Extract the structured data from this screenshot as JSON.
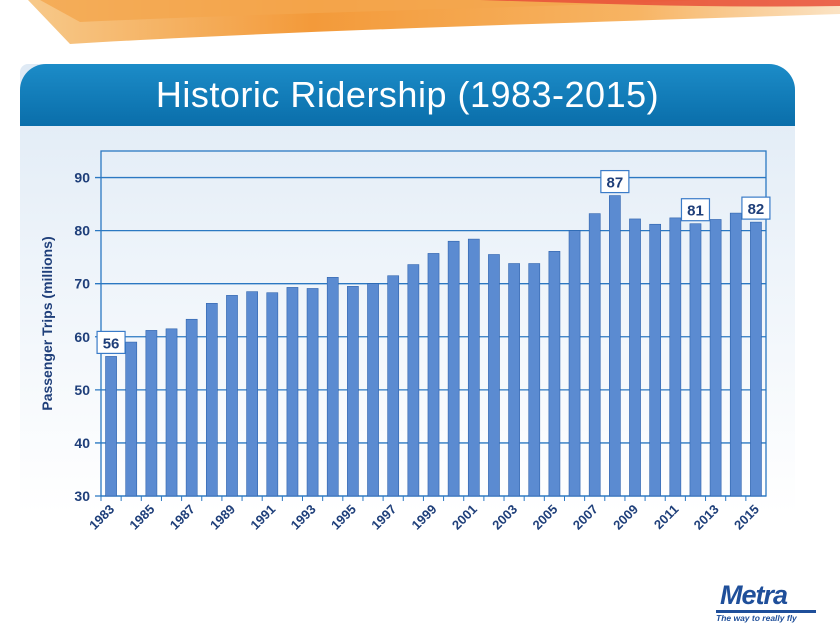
{
  "slide": {
    "title": "Historic Ridership (1983-2015)"
  },
  "logo": {
    "word": "Metra",
    "tagline": "The way to really fly"
  },
  "colors": {
    "bar": "#5b8bd1",
    "bar_edge": "#2f63ad",
    "title_bar": "#0a6eaa",
    "axis_text": "#1f3f7a",
    "grid": "#2b78c2",
    "label_border": "#3a7bc8"
  },
  "chart_data": {
    "type": "bar",
    "title": "Historic Ridership (1983-2015)",
    "ylabel": "Passenger Trips (millions)",
    "xlabel": "",
    "ylim": [
      30,
      95
    ],
    "yticks": [
      30,
      40,
      50,
      60,
      70,
      80,
      90
    ],
    "grid": true,
    "legend": "none",
    "categories": [
      "1983",
      "1984",
      "1985",
      "1986",
      "1987",
      "1988",
      "1989",
      "1990",
      "1991",
      "1992",
      "1993",
      "1994",
      "1995",
      "1996",
      "1997",
      "1998",
      "1999",
      "2000",
      "2001",
      "2002",
      "2003",
      "2004",
      "2005",
      "2006",
      "2007",
      "2008",
      "2009",
      "2010",
      "2011",
      "2012",
      "2013",
      "2014",
      "2015"
    ],
    "tick_labels": [
      "1983",
      "1985",
      "1987",
      "1989",
      "1991",
      "1993",
      "1995",
      "1997",
      "1999",
      "2001",
      "2003",
      "2005",
      "2007",
      "2009",
      "2011",
      "2013",
      "2015"
    ],
    "values": [
      56.3,
      59.0,
      61.2,
      61.5,
      63.3,
      66.3,
      67.8,
      68.5,
      68.3,
      69.3,
      69.1,
      71.2,
      69.5,
      70.0,
      71.5,
      73.6,
      75.7,
      78.0,
      78.4,
      75.5,
      73.8,
      73.8,
      76.1,
      80.0,
      83.2,
      86.6,
      82.2,
      81.2,
      82.4,
      81.3,
      82.1,
      83.3,
      81.6
    ],
    "annotations": [
      {
        "year": "1983",
        "text": "56"
      },
      {
        "year": "2008",
        "text": "87"
      },
      {
        "year": "2012",
        "text": "81"
      },
      {
        "year": "2015",
        "text": "82"
      }
    ]
  }
}
